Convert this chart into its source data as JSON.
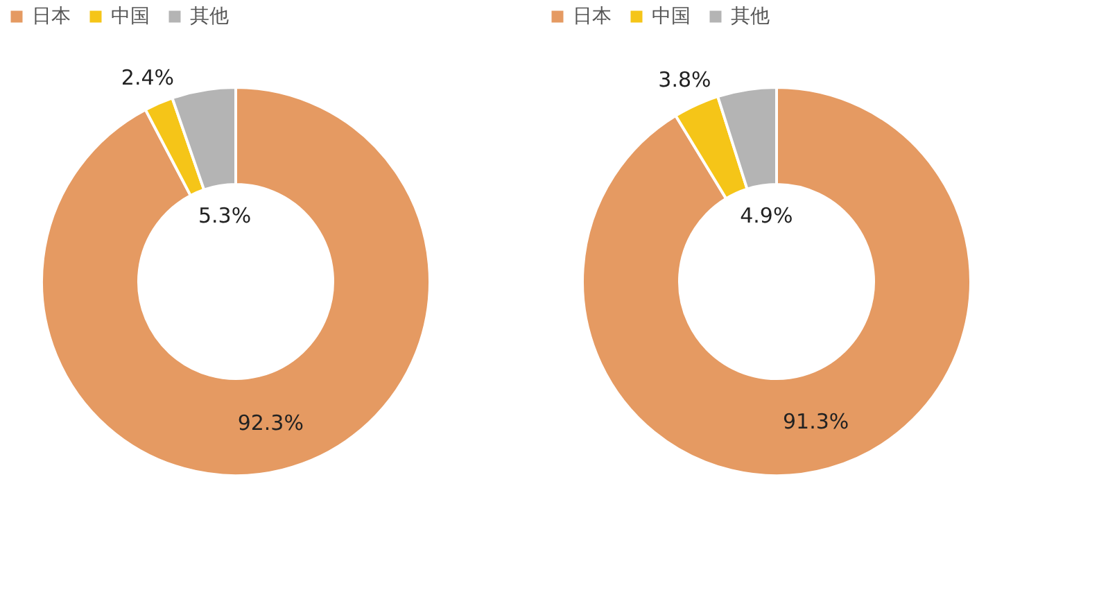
{
  "chart_data": [
    {
      "type": "donut",
      "categories": [
        "日本",
        "中国",
        "其他"
      ],
      "values": [
        92.3,
        2.4,
        5.3
      ],
      "colors": [
        "#e59a62",
        "#f5c518",
        "#b4b4b4"
      ],
      "value_labels": [
        "92.3%",
        "2.4%",
        "5.3%"
      ],
      "legend": "top"
    },
    {
      "type": "donut",
      "categories": [
        "日本",
        "中国",
        "其他"
      ],
      "values": [
        91.3,
        3.8,
        4.9
      ],
      "colors": [
        "#e59a62",
        "#f5c518",
        "#b4b4b4"
      ],
      "value_labels": [
        "91.3%",
        "3.8%",
        "4.9%"
      ],
      "legend": "top"
    }
  ]
}
